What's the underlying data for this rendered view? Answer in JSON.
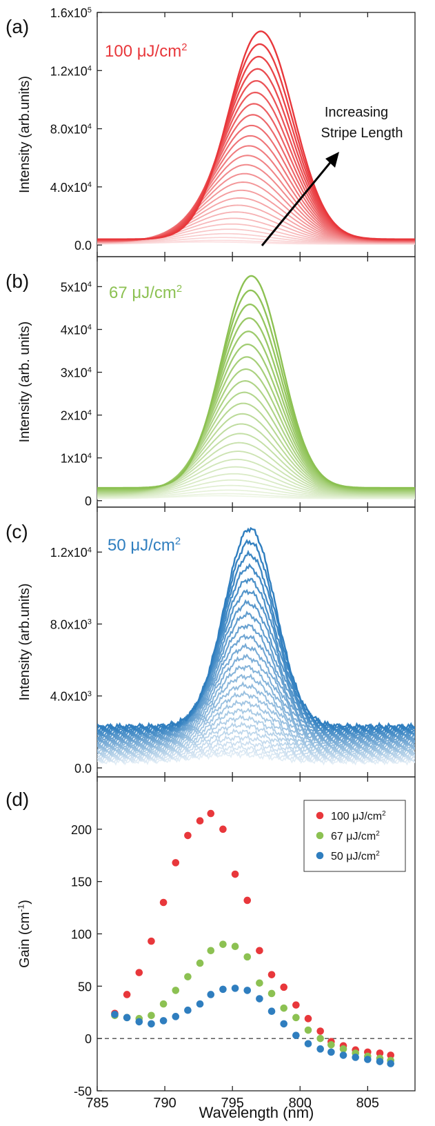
{
  "figure": {
    "xlabel": "Wavelength (nm)",
    "x_ticks": [
      "785",
      "790",
      "795",
      "800",
      "805"
    ]
  },
  "chart_data": [
    {
      "type": "line",
      "panel": "(a)",
      "label": "100 μJ/cm",
      "label_sup": "2",
      "color": "#e8373b",
      "ylabel": "Intensity (arb.units)",
      "xlim": [
        785,
        808.5
      ],
      "ylim": [
        -8000,
        160000
      ],
      "y_ticks": [
        {
          "v": 0,
          "t": "0.0"
        },
        {
          "v": 40000,
          "t": "4.0x10",
          "e": "4"
        },
        {
          "v": 80000,
          "t": "8.0x10",
          "e": "4"
        },
        {
          "v": 120000,
          "t": "1.2x10",
          "e": "4"
        },
        {
          "v": 160000,
          "t": "1.6x10",
          "e": "5"
        }
      ],
      "family": {
        "count": 26,
        "peak_start": 793.2,
        "peak_end": 797.1,
        "amp_min": 1500,
        "amp_max": 143000,
        "baseline": 4000,
        "sigma": 2.4,
        "noise": 0
      },
      "annotation": "Increasing Stripe Length"
    },
    {
      "type": "line",
      "panel": "(b)",
      "label": "67 μJ/cm",
      "label_sup": "2",
      "color": "#8cc152",
      "ylabel": "Intensity (arb. units)",
      "xlim": [
        785,
        808.5
      ],
      "ylim": [
        -1500,
        57000
      ],
      "y_ticks": [
        {
          "v": 0,
          "t": "0"
        },
        {
          "v": 10000,
          "t": "1x10",
          "e": "4"
        },
        {
          "v": 20000,
          "t": "2x10",
          "e": "4"
        },
        {
          "v": 30000,
          "t": "3x10",
          "e": "4"
        },
        {
          "v": 40000,
          "t": "4x10",
          "e": "4"
        },
        {
          "v": 50000,
          "t": "5x10",
          "e": "4"
        }
      ],
      "family": {
        "count": 24,
        "peak_start": 794.0,
        "peak_end": 796.4,
        "amp_min": 700,
        "amp_max": 49500,
        "baseline": 3000,
        "sigma": 2.2,
        "noise": 0
      },
      "annotation": ""
    },
    {
      "type": "line",
      "panel": "(c)",
      "label": "50 μJ/cm",
      "label_sup": "2",
      "color": "#2f7ebf",
      "ylabel": "Intensity (arb.units)",
      "xlim": [
        785,
        808.5
      ],
      "ylim": [
        -500,
        14500
      ],
      "y_ticks": [
        {
          "v": 0,
          "t": "0.0"
        },
        {
          "v": 4000,
          "t": "4.0x10",
          "e": "3"
        },
        {
          "v": 8000,
          "t": "8.0x10",
          "e": "3"
        },
        {
          "v": 12000,
          "t": "1.2x10",
          "e": "4"
        }
      ],
      "family": {
        "count": 26,
        "peak_start": 795.0,
        "peak_end": 796.3,
        "amp_min": 400,
        "amp_max": 11000,
        "baseline": 2300,
        "sigma": 1.9,
        "noise": 160
      },
      "annotation": ""
    },
    {
      "type": "scatter",
      "panel": "(d)",
      "ylabel": "Gain (cm",
      "ylabel_sup": "-1",
      "ylabel_end": ")",
      "xlim": [
        785,
        808.5
      ],
      "ylim": [
        -50,
        250
      ],
      "y_ticks": [
        {
          "v": -50,
          "t": "-50"
        },
        {
          "v": 0,
          "t": "0"
        },
        {
          "v": 50,
          "t": "50"
        },
        {
          "v": 100,
          "t": "100"
        },
        {
          "v": 150,
          "t": "150"
        },
        {
          "v": 200,
          "t": "200"
        }
      ],
      "zero_line": true,
      "series": [
        {
          "name": "100 μJ/cm",
          "sup": "2",
          "color": "#e8373b",
          "x": [
            786.3,
            787.2,
            788.1,
            789.0,
            789.9,
            790.8,
            791.7,
            792.6,
            793.4,
            794.3,
            795.2,
            796.1,
            797.0,
            797.9,
            798.8,
            799.7,
            800.6,
            801.5,
            802.3,
            803.2,
            804.1,
            805.0,
            805.9,
            806.7
          ],
          "y": [
            24,
            42,
            63,
            93,
            130,
            168,
            194,
            208,
            215,
            200,
            157,
            132,
            84,
            61,
            49,
            32,
            19,
            7,
            -3,
            -7,
            -11,
            -13,
            -14,
            -16
          ]
        },
        {
          "name": "67   μJ/cm",
          "sup": "2",
          "color": "#8cc152",
          "x": [
            786.3,
            787.2,
            788.1,
            789.0,
            789.9,
            790.8,
            791.7,
            792.6,
            793.4,
            794.3,
            795.2,
            796.1,
            797.0,
            797.9,
            798.8,
            799.7,
            800.6,
            801.5,
            802.3,
            803.2,
            804.1,
            805.0,
            805.9,
            806.7
          ],
          "y": [
            22,
            20,
            19,
            22,
            33,
            46,
            59,
            72,
            84,
            90,
            88,
            78,
            53,
            43,
            29,
            20,
            8,
            0,
            -6,
            -10,
            -14,
            -17,
            -19,
            -21
          ]
        },
        {
          "name": "50   μJ/cm",
          "sup": "2",
          "color": "#2f7ebf",
          "x": [
            786.3,
            787.2,
            788.1,
            789.0,
            789.9,
            790.8,
            791.7,
            792.6,
            793.4,
            794.3,
            795.2,
            796.1,
            797.0,
            797.9,
            798.8,
            799.7,
            800.6,
            801.5,
            802.3,
            803.2,
            804.1,
            805.0,
            805.9,
            806.7
          ],
          "y": [
            23,
            20,
            16,
            14,
            17,
            21,
            27,
            33,
            42,
            47,
            48,
            46,
            38,
            26,
            14,
            3,
            -5,
            -10,
            -13,
            -16,
            -18,
            -20,
            -22,
            -24
          ]
        }
      ]
    }
  ]
}
